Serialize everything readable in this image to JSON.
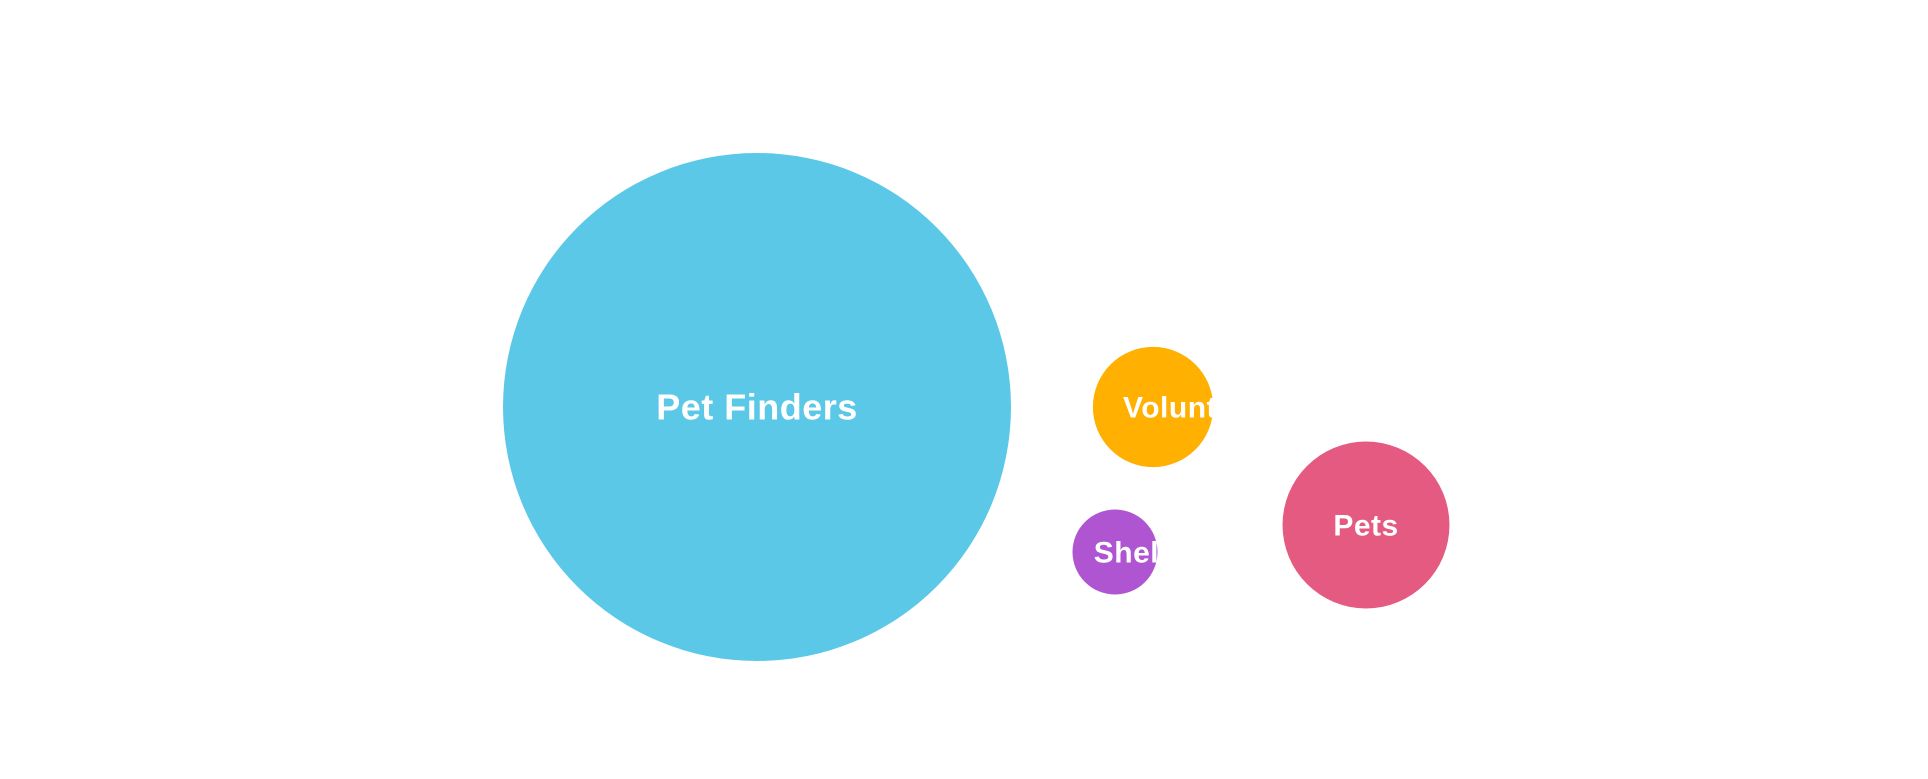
{
  "chart_data": {
    "type": "bubble",
    "title": "",
    "legend": "none",
    "bubbles": [
      {
        "label": "Pet Finders",
        "value": 100,
        "color": "#5BC8E8"
      },
      {
        "label": "Pets",
        "value": 10.8,
        "color": "#E45A81"
      },
      {
        "label": "Volunteers",
        "value": 5.6,
        "color": "#FFB000"
      },
      {
        "label": "Shelters",
        "value": 2.8,
        "color": "#AF55D1"
      }
    ]
  }
}
